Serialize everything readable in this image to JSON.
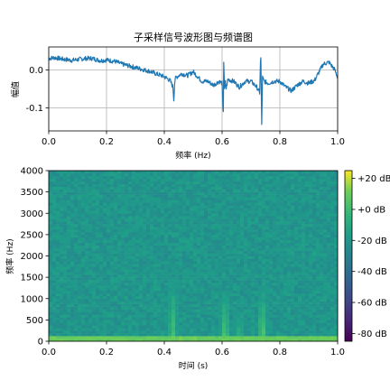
{
  "chart_data": [
    {
      "type": "line",
      "title": "子采样信号波形图与频谱图",
      "xlabel": "频率 (Hz)",
      "ylabel": "幅值",
      "xlim": [
        0.0,
        1.0
      ],
      "ylim": [
        -0.16,
        0.06
      ],
      "grid": true,
      "x_ticks": [
        0.0,
        0.2,
        0.4,
        0.6,
        0.8,
        1.0
      ],
      "x_tick_labels": [
        "0.0",
        "0.2",
        "0.4",
        "0.6",
        "0.8",
        "1.0"
      ],
      "y_ticks": [
        0.0,
        -0.1
      ],
      "y_tick_labels": [
        "0.0",
        "-0.1"
      ],
      "color": "#1f77b4",
      "series": [
        {
          "x": [
            0.0,
            0.02,
            0.05,
            0.08,
            0.1,
            0.13,
            0.15,
            0.18,
            0.2,
            0.23,
            0.25,
            0.27,
            0.3,
            0.33,
            0.35,
            0.37,
            0.39,
            0.405,
            0.42,
            0.43,
            0.433,
            0.436,
            0.44,
            0.46,
            0.48,
            0.5,
            0.53,
            0.55,
            0.57,
            0.59,
            0.6,
            0.604,
            0.606,
            0.608,
            0.611,
            0.614,
            0.62,
            0.64,
            0.66,
            0.68,
            0.7,
            0.72,
            0.73,
            0.734,
            0.737,
            0.74,
            0.745,
            0.76,
            0.78,
            0.8,
            0.82,
            0.84,
            0.86,
            0.88,
            0.9,
            0.92,
            0.95,
            0.97,
            0.99,
            1.0
          ],
          "y": [
            0.03,
            0.032,
            0.028,
            0.025,
            0.027,
            0.03,
            0.03,
            0.024,
            0.026,
            0.022,
            0.016,
            0.012,
            0.006,
            0.0,
            -0.004,
            -0.01,
            -0.015,
            -0.02,
            -0.028,
            -0.045,
            -0.08,
            -0.03,
            -0.02,
            -0.01,
            -0.015,
            -0.005,
            -0.03,
            -0.03,
            -0.04,
            -0.03,
            -0.035,
            -0.132,
            0.048,
            -0.06,
            -0.03,
            -0.05,
            -0.025,
            -0.03,
            -0.045,
            -0.03,
            -0.03,
            -0.045,
            -0.06,
            0.05,
            -0.15,
            -0.02,
            -0.03,
            -0.035,
            -0.03,
            -0.03,
            -0.045,
            -0.055,
            -0.04,
            -0.03,
            -0.035,
            -0.028,
            0.015,
            0.02,
            0.0,
            -0.02
          ]
        }
      ]
    },
    {
      "type": "heatmap",
      "xlabel": "时间 (s)",
      "ylabel": "频率 (Hz)",
      "xlim": [
        0.0,
        1.0
      ],
      "ylim": [
        0,
        4000
      ],
      "x_ticks": [
        0.0,
        0.2,
        0.4,
        0.6,
        0.8,
        1.0
      ],
      "x_tick_labels": [
        "0.0",
        "0.2",
        "0.4",
        "0.6",
        "0.8",
        "1.0"
      ],
      "y_ticks": [
        0,
        500,
        1000,
        1500,
        2000,
        2500,
        3000,
        3500,
        4000
      ],
      "y_tick_labels": [
        "0",
        "500",
        "1000",
        "1500",
        "2000",
        "2500",
        "3000",
        "3500",
        "4000"
      ],
      "colormap": "viridis",
      "colorbar": {
        "range_db": [
          -85,
          25
        ],
        "ticks": [
          20,
          0,
          -20,
          -40,
          -60,
          -80
        ],
        "tick_labels": [
          "+20 dB",
          "+0 dB",
          "-20 dB",
          "-40 dB",
          "-60 dB",
          "-80 dB"
        ]
      },
      "background_level_db": -20,
      "low_band": {
        "freq_max_hz": 150,
        "level_db": 10
      },
      "bursts": [
        {
          "time_s": 0.43,
          "freq_max_hz": 1500,
          "peak_db": 0
        },
        {
          "time_s": 0.61,
          "freq_max_hz": 1200,
          "peak_db": 5
        },
        {
          "time_s": 0.66,
          "freq_max_hz": 700,
          "peak_db": -5
        },
        {
          "time_s": 0.74,
          "freq_max_hz": 1300,
          "peak_db": 5
        }
      ]
    }
  ]
}
